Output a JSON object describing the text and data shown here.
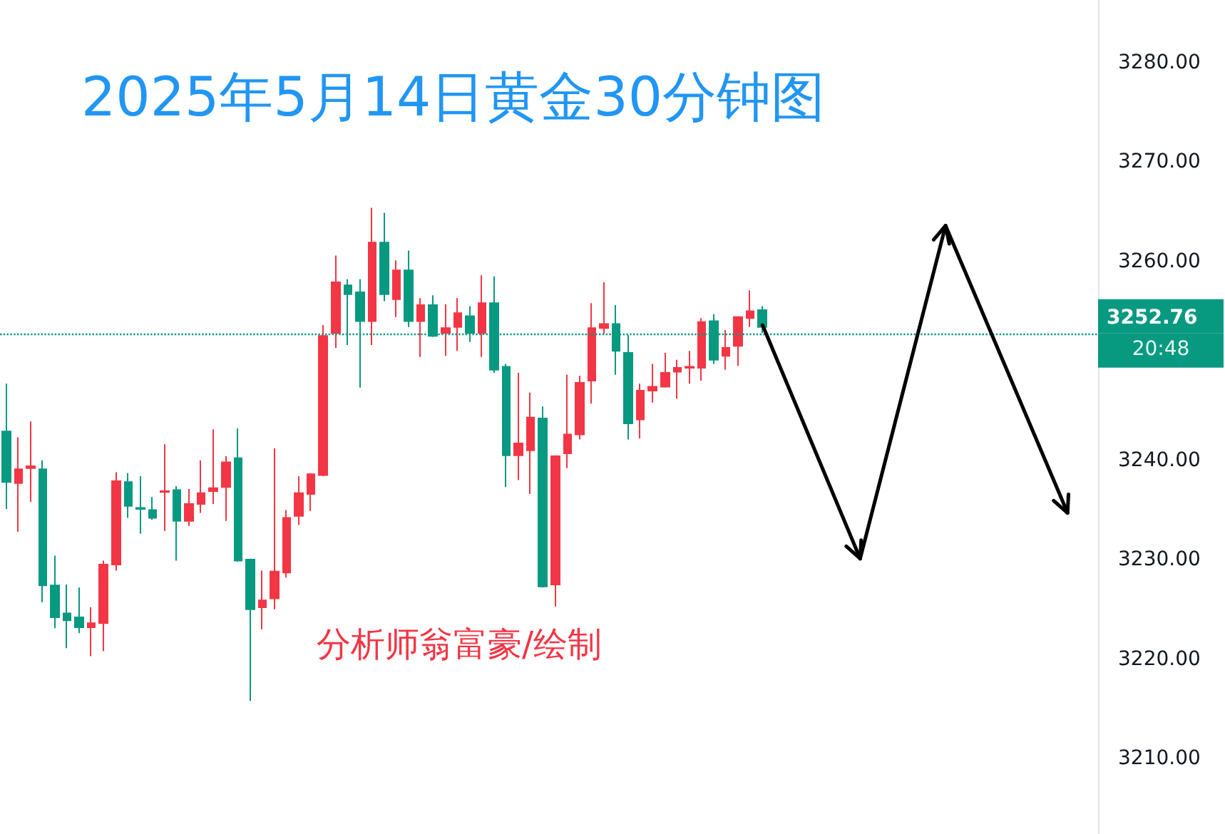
{
  "chart_data": {
    "type": "candlestick",
    "title": "2025年5月14日黄金30分钟图",
    "categories": [
      null,
      null,
      null,
      null,
      null,
      null,
      null,
      null,
      null,
      null,
      null,
      null,
      null,
      null,
      null,
      null,
      null,
      null,
      null,
      null,
      null,
      null,
      null,
      null,
      null,
      null,
      null,
      null,
      null,
      null,
      null,
      null,
      null,
      null,
      null,
      null,
      null,
      null,
      null,
      null,
      null,
      null,
      null,
      null,
      null,
      null,
      null,
      null,
      null,
      null,
      null,
      null,
      null,
      null,
      null,
      null,
      null,
      null,
      null,
      null,
      null,
      null,
      null,
      null,
      null,
      null,
      null,
      null,
      null,
      null,
      null,
      null,
      null,
      null,
      null,
      null,
      null,
      null,
      null,
      null,
      null,
      null,
      null,
      null,
      null,
      null,
      null,
      null,
      null,
      null
    ],
    "ohlc": [
      [
        3242.9,
        3247.7,
        3235.1,
        3237.8
      ],
      [
        3237.7,
        3242.3,
        3232.8,
        3239.1
      ],
      [
        3239.2,
        3243.9,
        3235.8,
        3239.4
      ],
      [
        3239.1,
        3240.0,
        3225.7,
        3227.4
      ],
      [
        3227.4,
        3230.4,
        3223.1,
        3224.2
      ],
      [
        3224.6,
        3227.5,
        3221.1,
        3223.9
      ],
      [
        3224.2,
        3227.2,
        3222.6,
        3223.2
      ],
      [
        3223.2,
        3225.2,
        3220.3,
        3223.6
      ],
      [
        3223.6,
        3229.9,
        3220.8,
        3229.5
      ],
      [
        3229.5,
        3238.8,
        3228.9,
        3237.9
      ],
      [
        3237.8,
        3238.7,
        3234.2,
        3235.4
      ],
      [
        3235.2,
        3238.4,
        3232.6,
        3235.1
      ],
      [
        3235.0,
        3236.3,
        3234.0,
        3234.2
      ],
      [
        3236.8,
        3241.6,
        3232.9,
        3236.9
      ],
      [
        3237.0,
        3237.4,
        3229.9,
        3233.9
      ],
      [
        3233.9,
        3237.1,
        3233.4,
        3235.6
      ],
      [
        3235.6,
        3240.0,
        3234.7,
        3236.7
      ],
      [
        3236.9,
        3243.1,
        3235.6,
        3237.2
      ],
      [
        3237.3,
        3240.4,
        3233.9,
        3239.8
      ],
      [
        3240.2,
        3243.2,
        3229.8,
        3229.9
      ],
      [
        3230.0,
        3230.1,
        3215.8,
        3225.0
      ],
      [
        3225.2,
        3228.9,
        3223.0,
        3225.9
      ],
      [
        3226.1,
        3241.2,
        3225.0,
        3228.8
      ],
      [
        3228.7,
        3235.0,
        3228.2,
        3234.2
      ],
      [
        3234.4,
        3238.4,
        3233.5,
        3236.7
      ],
      [
        3236.6,
        3238.7,
        3234.9,
        3238.6
      ],
      [
        3238.5,
        3253.6,
        3238.4,
        3252.5
      ],
      [
        3252.8,
        3260.6,
        3251.3,
        3257.9
      ],
      [
        3257.6,
        3258.2,
        3251.6,
        3256.7
      ],
      [
        3256.9,
        3258.2,
        3247.3,
        3254.0
      ],
      [
        3254.0,
        3265.4,
        3251.6,
        3261.9
      ],
      [
        3261.9,
        3264.9,
        3256.0,
        3256.7
      ],
      [
        3256.2,
        3260.1,
        3254.4,
        3259.1
      ],
      [
        3259.1,
        3261.1,
        3253.4,
        3254.0
      ],
      [
        3254.0,
        3256.3,
        3250.4,
        3255.6
      ],
      [
        3255.6,
        3256.6,
        3252.4,
        3252.5
      ],
      [
        3252.8,
        3255.7,
        3250.5,
        3253.3
      ],
      [
        3253.4,
        3256.3,
        3251.0,
        3254.8
      ],
      [
        3254.5,
        3255.5,
        3251.9,
        3252.8
      ],
      [
        3252.8,
        3258.6,
        3250.4,
        3255.8
      ],
      [
        3255.8,
        3258.5,
        3248.8,
        3249.1
      ],
      [
        3249.4,
        3249.7,
        3237.3,
        3240.5
      ],
      [
        3240.5,
        3248.8,
        3238.0,
        3241.7
      ],
      [
        3241.0,
        3246.8,
        3236.6,
        3244.3
      ],
      [
        3244.2,
        3245.4,
        3227.2,
        3227.3
      ],
      [
        3227.5,
        3240.5,
        3225.3,
        3240.4
      ],
      [
        3240.7,
        3248.6,
        3239.2,
        3242.6
      ],
      [
        3242.6,
        3248.5,
        3242.1,
        3247.8
      ],
      [
        3248.0,
        3255.8,
        3245.7,
        3253.3
      ],
      [
        3253.3,
        3257.9,
        3252.7,
        3253.7
      ],
      [
        3253.7,
        3255.6,
        3248.6,
        3251.0
      ],
      [
        3250.8,
        3252.6,
        3242.1,
        3243.7
      ],
      [
        3244.1,
        3247.7,
        3242.2,
        3247.0
      ],
      [
        3247.0,
        3249.7,
        3245.8,
        3247.4
      ],
      [
        3247.4,
        3250.8,
        3247.3,
        3248.8
      ],
      [
        3248.9,
        3250.1,
        3246.2,
        3249.3
      ],
      [
        3249.3,
        3251.0,
        3247.7,
        3249.4
      ],
      [
        3249.3,
        3254.3,
        3248.0,
        3253.9
      ],
      [
        3254.0,
        3254.7,
        3249.7,
        3250.1
      ],
      [
        3250.5,
        3253.1,
        3249.1,
        3251.3
      ],
      [
        3251.5,
        3254.4,
        3249.5,
        3254.4
      ],
      [
        3254.3,
        3257.1,
        3253.4,
        3255.0
      ],
      [
        3255.1,
        3255.5,
        3252.8,
        3253.4
      ],
      null,
      null,
      null,
      null,
      null,
      null,
      null,
      null,
      null,
      null,
      null,
      null,
      null,
      null,
      null,
      null,
      null,
      null,
      null,
      null,
      null,
      null,
      null,
      null,
      null,
      null,
      null
    ],
    "colors": [
      "#089981",
      "#f23645",
      "#f23645",
      "#089981",
      "#089981",
      "#089981",
      "#089981",
      "#f23645",
      "#f23645",
      "#f23645",
      "#089981",
      "#089981",
      "#089981",
      "#f23645",
      "#089981",
      "#f23645",
      "#f23645",
      "#f23645",
      "#f23645",
      "#089981",
      "#089981",
      "#f23645",
      "#f23645",
      "#f23645",
      "#f23645",
      "#f23645",
      "#f23645",
      "#f23645",
      "#089981",
      "#089981",
      "#f23645",
      "#089981",
      "#f23645",
      "#089981",
      "#f23645",
      "#089981",
      "#f23645",
      "#f23645",
      "#089981",
      "#f23645",
      "#089981",
      "#089981",
      "#f23645",
      "#f23645",
      "#089981",
      "#f23645",
      "#f23645",
      "#f23645",
      "#f23645",
      "#f23645",
      "#089981",
      "#089981",
      "#f23645",
      "#f23645",
      "#f23645",
      "#f23645",
      "#f23645",
      "#f23645",
      "#089981",
      "#f23645",
      "#f23645",
      "#f23645",
      "#089981",
      null,
      null,
      null,
      null,
      null,
      null,
      null,
      null,
      null,
      null,
      null,
      null,
      null,
      null,
      null,
      null,
      null,
      null,
      null,
      null,
      null,
      null,
      null,
      null,
      null,
      null,
      null
    ],
    "ylim": [
      3202.4,
      3286.3
    ],
    "yticks": [
      {
        "value": 3210,
        "label": "3210.00"
      },
      {
        "value": 3220,
        "label": "3220.00"
      },
      {
        "value": 3230,
        "label": "3230.00"
      },
      {
        "value": 3240,
        "label": "3240.00"
      },
      {
        "value": 3260,
        "label": "3260.00"
      },
      {
        "value": 3270,
        "label": "3270.00"
      },
      {
        "value": 3280,
        "label": "3280.00"
      }
    ],
    "grid": false,
    "ref_lines": [
      {
        "axis": "y",
        "value": 3252.76,
        "label": "3252.76",
        "color": "#089981",
        "line_style": "dotted"
      }
    ],
    "annotations": [
      "分析师翁富豪/绘制",
      "20:48"
    ]
  }
}
